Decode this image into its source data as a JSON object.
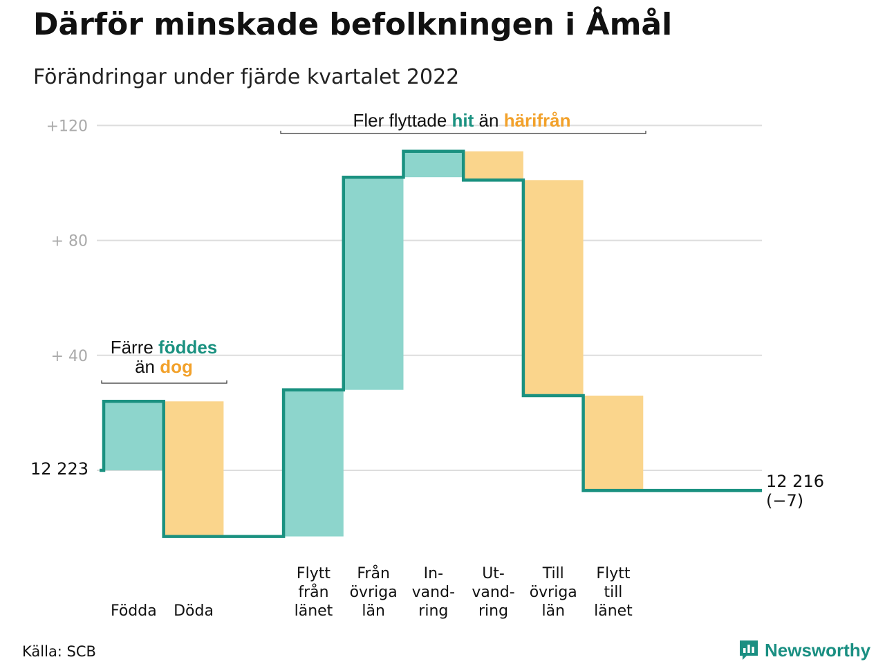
{
  "title": "Därför minskade befolkningen i Åmål",
  "subtitle": "Förändringar under fjärde kvartalet 2022",
  "source": "Källa: SCB",
  "brand": {
    "name": "Newsworthy",
    "icon": "bar-chart-icon",
    "color": "#1a8f82"
  },
  "colors": {
    "increase": "#8dd5cc",
    "decrease": "#fad58c",
    "line": "#1a9180",
    "accent_teal": "#1a9180",
    "accent_orange": "#f2a12a",
    "grid": "#dddddd",
    "tick": "#aaaaaa"
  },
  "chart_data": {
    "type": "waterfall",
    "title": "Därför minskade befolkningen i Åmål",
    "subtitle": "Förändringar under fjärde kvartalet 2022",
    "baseline": 12223,
    "y_ticks": [
      {
        "value": 120,
        "label": "+120"
      },
      {
        "value": 80,
        "label": "+ 80"
      },
      {
        "value": 40,
        "label": "+ 40"
      }
    ],
    "ylim": [
      -26,
      120
    ],
    "grid": true,
    "start_label": "12 223",
    "end_label": [
      "12 216",
      "(−7)"
    ],
    "steps": [
      {
        "label": [
          "",
          "",
          "Födda"
        ],
        "delta": 24,
        "kind": "increase"
      },
      {
        "label": [
          "",
          "",
          "Döda"
        ],
        "delta": -47,
        "kind": "decrease"
      },
      {
        "label": [
          "",
          "",
          ""
        ],
        "delta": 0,
        "kind": "gap"
      },
      {
        "label": [
          "Flytt",
          "från",
          "länet"
        ],
        "delta": 51,
        "kind": "increase"
      },
      {
        "label": [
          "Från",
          "övriga",
          "län"
        ],
        "delta": 74,
        "kind": "increase"
      },
      {
        "label": [
          "In-",
          "vand-",
          "ring"
        ],
        "delta": 9,
        "kind": "increase"
      },
      {
        "label": [
          "Ut-",
          "vand-",
          "ring"
        ],
        "delta": -10,
        "kind": "decrease"
      },
      {
        "label": [
          "Till",
          "övriga",
          "län"
        ],
        "delta": -75,
        "kind": "decrease"
      },
      {
        "label": [
          "Flytt",
          "till",
          "länet"
        ],
        "delta": -33,
        "kind": "decrease"
      }
    ],
    "annotations": [
      {
        "parts": [
          [
            "Färre ",
            "plain"
          ],
          [
            "föddes",
            "teal"
          ]
        ],
        "parts2": [
          [
            "än ",
            "plain"
          ],
          [
            "dog",
            "orange"
          ]
        ]
      },
      {
        "parts": [
          [
            "Fler flyttade ",
            "plain"
          ],
          [
            "hit",
            "teal"
          ],
          [
            " än ",
            "plain"
          ],
          [
            "härifrån",
            "orange"
          ]
        ]
      }
    ]
  }
}
